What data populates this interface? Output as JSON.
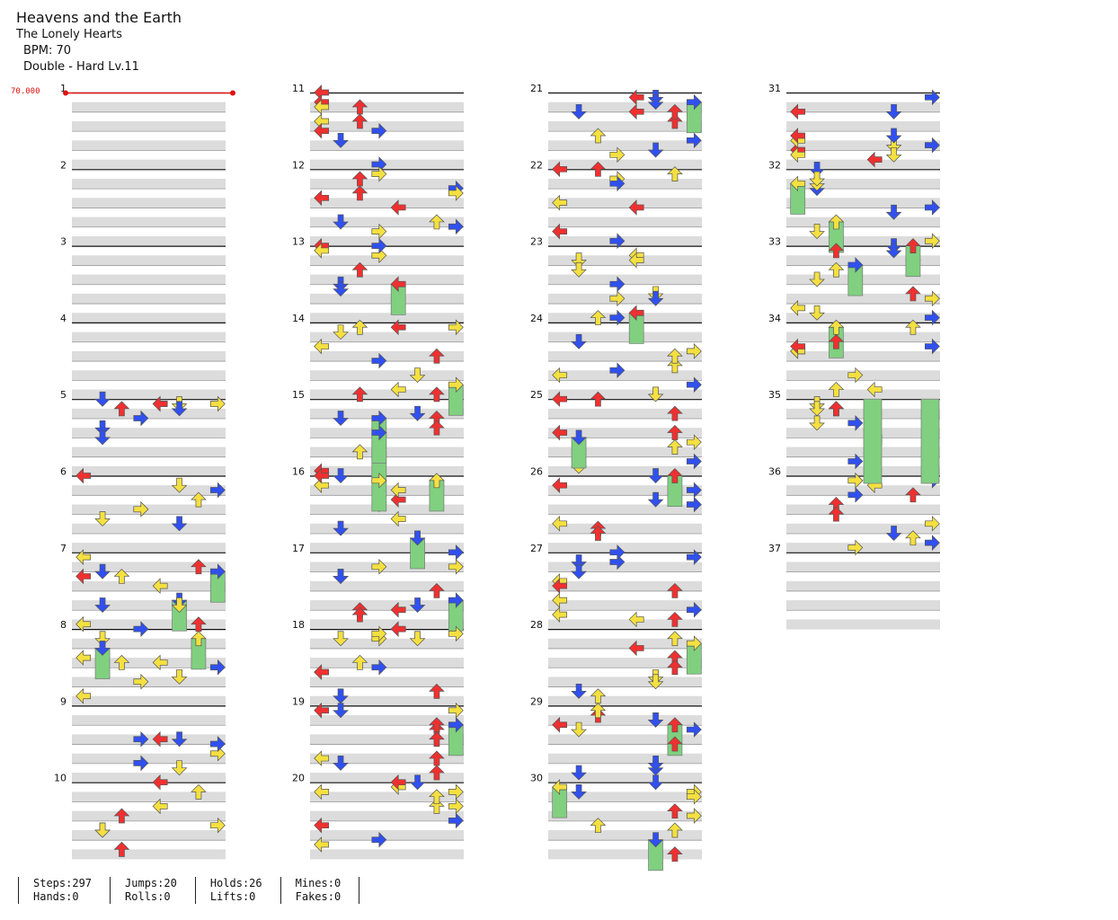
{
  "header": {
    "title": "Heavens and the Earth",
    "artist": "The Lonely Hearts",
    "bpm_label": "BPM: 70",
    "difficulty": "Double - Hard Lv.11"
  },
  "bpm_marker": "70.000",
  "measures": [
    "1",
    "2",
    "3",
    "4",
    "5",
    "6",
    "7",
    "8",
    "9",
    "10",
    "11",
    "12",
    "13",
    "14",
    "15",
    "16",
    "17",
    "18",
    "19",
    "20",
    "21",
    "22",
    "23",
    "24",
    "25",
    "26",
    "27",
    "28",
    "29",
    "30",
    "31",
    "32",
    "33",
    "34",
    "35",
    "36",
    "37"
  ],
  "measure_count": 37,
  "colors": {
    "left": "#f03030",
    "down": "#3050f0",
    "up": "#f03030",
    "right": "#3050f0",
    "yellow": "#f4e040",
    "hold": "#80d080",
    "band": "#dcdcdc"
  },
  "stats": {
    "steps": "Steps:297",
    "hands": "Hands:0",
    "jumps": "Jumps:20",
    "rolls": "Rolls:0",
    "holds": "Holds:26",
    "lifts": "Lifts:0",
    "mines": "Mines:0",
    "fakes": "Fakes:0"
  }
}
